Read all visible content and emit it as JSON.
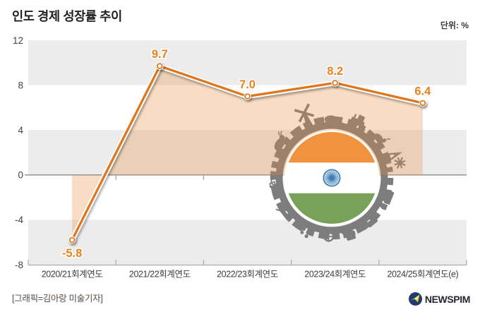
{
  "title": "인도 경제 성장률 추이",
  "unit_label": "단위: %",
  "credit": "[그래픽=김아랑 미술기자]",
  "logo_text": "NEWSPIM",
  "chart_data": {
    "type": "line",
    "title": "인도 경제 성장률 추이",
    "unit": "%",
    "categories": [
      "2020/21회계연도",
      "2021/22회계연도",
      "2022/23회계연도",
      "2023/24회계연도",
      "2024/25회계연도(e)"
    ],
    "values": [
      -5.8,
      9.7,
      7.0,
      8.2,
      6.4
    ],
    "value_labels": [
      "-5.8",
      "9.7",
      "7.0",
      "8.2",
      "6.4"
    ],
    "ylim": [
      -8,
      12
    ],
    "yticks": [
      12,
      8,
      4,
      0,
      -4,
      -8
    ],
    "grid_bands": true,
    "legend": "none",
    "area_fill_to_zero": true,
    "colors": {
      "line": "#e0761c",
      "value_label": "#e8811c",
      "area": "rgba(231,140,58,0.30)",
      "band": "#ececec",
      "axis": "#9a9a9a",
      "marker_fill": "#ffffff"
    },
    "decoration": {
      "name": "india-flag-industry-circle",
      "ring_color": "#7d7d7d",
      "flag_colors": {
        "saffron": "#f0923e",
        "white": "#ffffff",
        "green": "#78a15a",
        "chakra_blue": "#3f7fb5",
        "chakra_fill": "#ddebf5"
      }
    }
  },
  "logo_colors": {
    "circle": "#1d3c72",
    "swoosh": "#f6c31c"
  }
}
